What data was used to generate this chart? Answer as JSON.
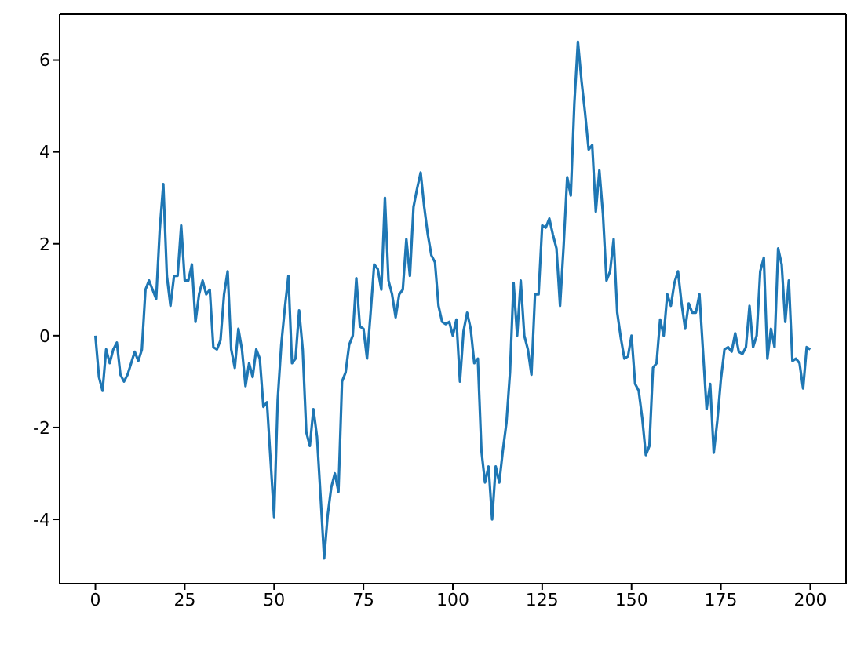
{
  "chart_data": {
    "type": "line",
    "x": [
      0,
      1,
      2,
      3,
      4,
      5,
      6,
      7,
      8,
      9,
      10,
      11,
      12,
      13,
      14,
      15,
      16,
      17,
      18,
      19,
      20,
      21,
      22,
      23,
      24,
      25,
      26,
      27,
      28,
      29,
      30,
      31,
      32,
      33,
      34,
      35,
      36,
      37,
      38,
      39,
      40,
      41,
      42,
      43,
      44,
      45,
      46,
      47,
      48,
      49,
      50,
      51,
      52,
      53,
      54,
      55,
      56,
      57,
      58,
      59,
      60,
      61,
      62,
      63,
      64,
      65,
      66,
      67,
      68,
      69,
      70,
      71,
      72,
      73,
      74,
      75,
      76,
      77,
      78,
      79,
      80,
      81,
      82,
      83,
      84,
      85,
      86,
      87,
      88,
      89,
      90,
      91,
      92,
      93,
      94,
      95,
      96,
      97,
      98,
      99,
      100,
      101,
      102,
      103,
      104,
      105,
      106,
      107,
      108,
      109,
      110,
      111,
      112,
      113,
      114,
      115,
      116,
      117,
      118,
      119,
      120,
      121,
      122,
      123,
      124,
      125,
      126,
      127,
      128,
      129,
      130,
      131,
      132,
      133,
      134,
      135,
      136,
      137,
      138,
      139,
      140,
      141,
      142,
      143,
      144,
      145,
      146,
      147,
      148,
      149,
      150,
      151,
      152,
      153,
      154,
      155,
      156,
      157,
      158,
      159,
      160,
      161,
      162,
      163,
      164,
      165,
      166,
      167,
      168,
      169,
      170,
      171,
      172,
      173,
      174,
      175,
      176,
      177,
      178,
      179,
      180,
      181,
      182,
      183,
      184,
      185,
      186,
      187,
      188,
      189,
      190,
      191,
      192,
      193,
      194,
      195,
      196,
      197,
      198,
      199,
      200
    ],
    "series": [
      {
        "color": "#1f77b4",
        "values": [
          0,
          -0.9,
          -1.2,
          -0.3,
          -0.6,
          -0.3,
          -0.15,
          -0.85,
          -1.0,
          -0.85,
          -0.6,
          -0.35,
          -0.55,
          -0.3,
          1.0,
          1.2,
          1.0,
          0.8,
          2.3,
          3.3,
          1.3,
          0.65,
          1.3,
          1.3,
          2.4,
          1.2,
          1.2,
          1.55,
          0.3,
          0.9,
          1.2,
          0.9,
          1.0,
          -0.25,
          -0.3,
          -0.1,
          0.9,
          1.4,
          -0.3,
          -0.7,
          0.15,
          -0.3,
          -1.1,
          -0.6,
          -0.9,
          -0.3,
          -0.5,
          -1.55,
          -1.45,
          -2.7,
          -3.95,
          -1.4,
          -0.2,
          0.6,
          1.3,
          -0.6,
          -0.5,
          0.55,
          -0.3,
          -2.1,
          -2.4,
          -1.6,
          -2.2,
          -3.5,
          -4.85,
          -3.9,
          -3.3,
          -3.0,
          -3.4,
          -1.0,
          -0.8,
          -0.2,
          0,
          1.25,
          0.2,
          0.15,
          -0.5,
          0.5,
          1.55,
          1.45,
          1.0,
          3.0,
          1.2,
          0.9,
          0.4,
          0.9,
          1.0,
          2.1,
          1.3,
          2.8,
          3.2,
          3.55,
          2.8,
          2.2,
          1.75,
          1.6,
          0.65,
          0.3,
          0.25,
          0.3,
          0.0,
          0.35,
          -1.0,
          0.1,
          0.5,
          0.15,
          -0.6,
          -0.5,
          -2.5,
          -3.2,
          -2.85,
          -4.0,
          -2.85,
          -3.2,
          -2.5,
          -1.9,
          -0.8,
          1.15,
          0.0,
          1.2,
          0.0,
          -0.3,
          -0.85,
          0.9,
          0.9,
          2.4,
          2.35,
          2.55,
          2.2,
          1.9,
          0.65,
          1.95,
          3.45,
          3.05,
          5.05,
          6.4,
          5.55,
          4.85,
          4.05,
          4.15,
          2.7,
          3.6,
          2.65,
          1.2,
          1.4,
          2.1,
          0.5,
          -0.05,
          -0.5,
          -0.45,
          0.0,
          -1.05,
          -1.2,
          -1.8,
          -2.6,
          -2.4,
          -0.7,
          -0.6,
          0.35,
          0.0,
          0.9,
          0.65,
          1.15,
          1.4,
          0.7,
          0.15,
          0.7,
          0.5,
          0.5,
          0.9,
          -0.35,
          -1.6,
          -1.05,
          -2.55,
          -1.85,
          -0.95,
          -0.3,
          -0.25,
          -0.35,
          0.05,
          -0.35,
          -0.4,
          -0.25,
          0.65,
          -0.25,
          0.0,
          1.4,
          1.7,
          -0.5,
          0.15,
          -0.25,
          1.9,
          1.55,
          0.3,
          1.2,
          -0.55,
          -0.5,
          -0.6,
          -1.15,
          -0.25,
          -0.3
        ]
      }
    ],
    "xlim": [
      -10,
      210
    ],
    "xticks": [
      0,
      25,
      50,
      75,
      100,
      125,
      150,
      175,
      200
    ],
    "ylim": [
      -5.4,
      7.0
    ],
    "yticks": [
      -4,
      -2,
      0,
      2,
      4,
      6
    ],
    "grid": false
  }
}
